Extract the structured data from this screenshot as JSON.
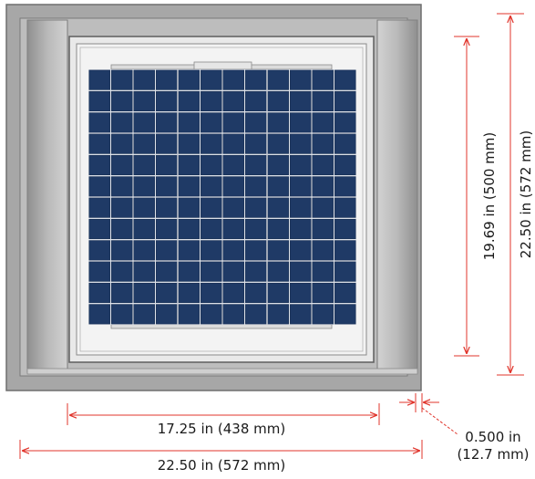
{
  "dimensions": {
    "inner_width": "17.25 in (438 mm)",
    "outer_width": "22.50 in (572 mm)",
    "panel_height": "19.69 in (500 mm)",
    "outer_height": "22.50 in (572 mm)",
    "wall_thickness_in": "0.500 in",
    "wall_thickness_mm": "(12.7 mm)"
  },
  "colors": {
    "frame_gray": "#a9a9a9",
    "cell_blue": "#1f3a66",
    "dimension_red": "#e0342b"
  },
  "panel": {
    "rows": 12,
    "cols": 12
  }
}
